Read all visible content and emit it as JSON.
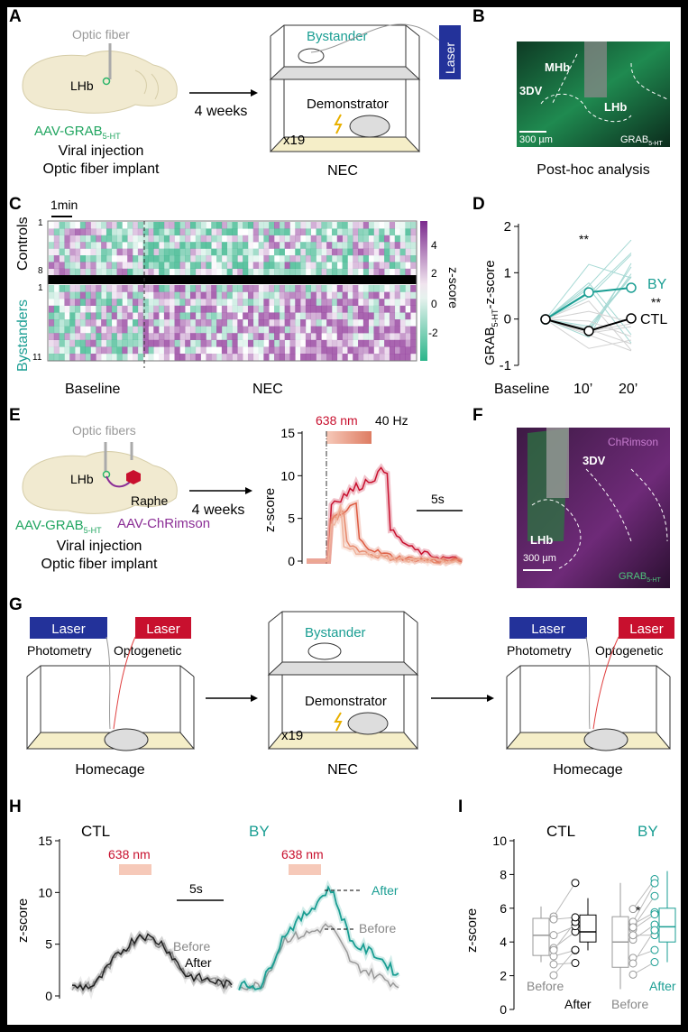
{
  "colors": {
    "teal": "#1a9e93",
    "green": "#21a560",
    "purple": "#8b2e96",
    "red": "#c8102e",
    "blue": "#23329a",
    "gray": "#999999",
    "bg": "#000000"
  },
  "panel_letters": [
    "A",
    "B",
    "C",
    "D",
    "E",
    "F",
    "G",
    "H",
    "I"
  ],
  "A": {
    "optic_fiber": "Optic fiber",
    "lhb": "LHb",
    "aav": "AAV-GRAB",
    "aav_sub": "5-HT",
    "viral": "Viral injection",
    "implant": "Optic fiber implant",
    "weeks": "4 weeks",
    "bystander": "Bystander",
    "demonstrator": "Demonstrator",
    "x19": "x19",
    "laser": "Laser",
    "nec": "NEC"
  },
  "B": {
    "mhb": "MHb",
    "3dv": "3DV",
    "lhb": "LHb",
    "scale": "300 µm",
    "grab": "GRAB",
    "grab_sub": "5-HT",
    "caption": "Post-hoc analysis"
  },
  "C": {
    "scale": "1min",
    "controls": "Controls",
    "bystanders": "Bystanders",
    "row_top_1": "1",
    "row_top_8": "8",
    "row_bot_1": "1",
    "row_bot_11": "11",
    "colorbar_ticks": [
      "4",
      "2",
      "0",
      "-2"
    ],
    "colorbar_label": "z-score",
    "baseline": "Baseline",
    "nec": "NEC"
  },
  "D": {
    "ylabel_main": "GRAB",
    "ylabel_sub": "5-HT",
    "ylabel_tail": "-z-score",
    "yticks": [
      "2",
      "1",
      "0",
      "-1"
    ],
    "xticks": [
      "Baseline",
      "10’",
      "20’"
    ],
    "sig_top": "**",
    "sig_right": "**",
    "by": "BY",
    "ctl": "CTL"
  },
  "E": {
    "optic_fibers": "Optic fibers",
    "lhb": "LHb",
    "raphe": "Raphe",
    "aav_grab": "AAV-GRAB",
    "aav_grab_sub": "5-HT",
    "aav_chr": "AAV-ChRimson",
    "viral": "Viral injection",
    "implant": "Optic fiber implant",
    "weeks": "4 weeks",
    "stim": "638 nm",
    "hz": "40 Hz",
    "ylabel": "z-score",
    "yticks": [
      "15",
      "10",
      "5",
      "0"
    ],
    "scale": "5s"
  },
  "F": {
    "chrimson": "ChRimson",
    "3dv": "3DV",
    "lhb": "LHb",
    "scale": "300 µm",
    "grab": "GRAB",
    "grab_sub": "5-HT"
  },
  "G": {
    "laser": "Laser",
    "photometry": "Photometry",
    "optogenetic": "Optogenetic",
    "homecage": "Homecage",
    "bystander": "Bystander",
    "demonstrator": "Demonstrator",
    "x19": "x19",
    "nec": "NEC"
  },
  "H": {
    "ctl": "CTL",
    "by": "BY",
    "stim": "638 nm",
    "ylabel": "z-score",
    "yticks": [
      "15",
      "10",
      "5",
      "0"
    ],
    "scale": "5s",
    "before": "Before",
    "after": "After"
  },
  "I": {
    "ctl": "CTL",
    "by": "BY",
    "ylabel": "z-score",
    "yticks": [
      "10",
      "8",
      "6",
      "4",
      "2",
      "0"
    ],
    "before": "Before",
    "after": "After",
    "sig": "*"
  },
  "chart_data": [
    {
      "panel": "D",
      "type": "line",
      "x": [
        "Baseline",
        "10’",
        "20’"
      ],
      "ylim": [
        -1,
        2
      ],
      "series": [
        {
          "name": "BY",
          "values": [
            0,
            0.58,
            0.68
          ]
        },
        {
          "name": "CTL",
          "values": [
            0,
            -0.25,
            0.02
          ]
        }
      ]
    },
    {
      "panel": "H-CTL",
      "type": "line",
      "ylim": [
        0,
        15
      ],
      "series": [
        {
          "name": "Before",
          "values": [
            0.8,
            1,
            4,
            5.5,
            5,
            2,
            1.5,
            1
          ]
        },
        {
          "name": "After",
          "values": [
            0.8,
            1,
            4,
            6,
            5,
            2,
            1.5,
            1
          ]
        }
      ]
    },
    {
      "panel": "H-BY",
      "type": "line",
      "ylim": [
        0,
        15
      ],
      "series": [
        {
          "name": "Before",
          "values": [
            1,
            1,
            5.5,
            6,
            6.8,
            3,
            2,
            1
          ]
        },
        {
          "name": "After",
          "values": [
            1,
            1,
            6,
            8,
            10.5,
            5,
            4,
            2
          ]
        }
      ]
    },
    {
      "panel": "I",
      "type": "box",
      "ylim": [
        0,
        10
      ],
      "series": [
        {
          "name": "CTL Before",
          "median": 4.4
        },
        {
          "name": "CTL After",
          "median": 4.6
        },
        {
          "name": "BY Before",
          "median": 4.0
        },
        {
          "name": "BY After",
          "median": 4.9
        }
      ]
    }
  ]
}
